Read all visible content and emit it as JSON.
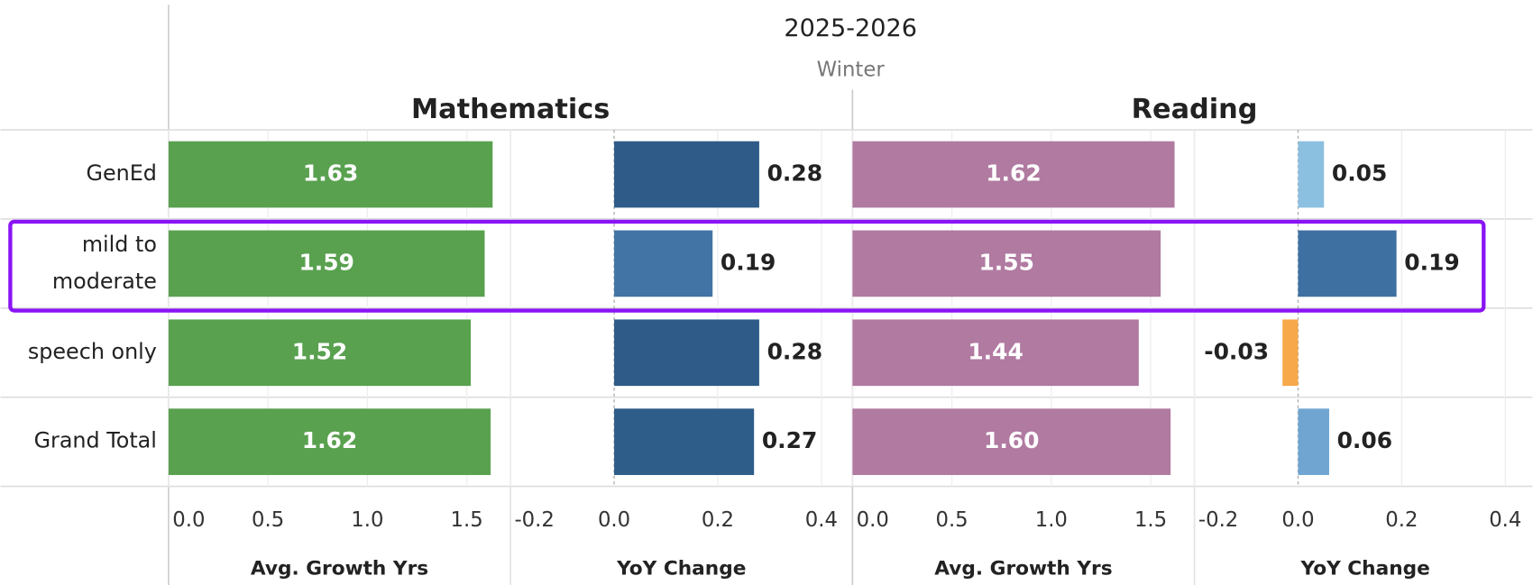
{
  "header": {
    "year": "2025-2026",
    "term": "Winter"
  },
  "chart_data": [
    {
      "type": "bar",
      "group": "Mathematics",
      "xlabel": "Avg. Growth Yrs",
      "categories": [
        "GenEd",
        "mild to moderate",
        "speech only",
        "Grand Total"
      ],
      "values": [
        1.63,
        1.59,
        1.52,
        1.62
      ],
      "value_labels": [
        "1.63",
        "1.59",
        "1.52",
        "1.62"
      ],
      "color": "#59a14f",
      "label_inside": true,
      "xlim": [
        0,
        1.72
      ],
      "xticks": [
        {
          "value": 0,
          "label": "0.0"
        },
        0.5,
        {
          "value": 1,
          "label": "1.0"
        },
        1.5
      ]
    },
    {
      "type": "bar",
      "xlabel": "YoY Change",
      "values": [
        0.28,
        0.19,
        0.28,
        0.27
      ],
      "value_labels": [
        "0.28",
        "0.19",
        "0.28",
        "0.27"
      ],
      "colors": [
        "#2e5b88",
        "#4274a6",
        "#2e5b88",
        "#2f5d8a"
      ],
      "label_inside": false,
      "xlim": [
        -0.2,
        0.46
      ],
      "xticks": [
        -0.2,
        {
          "value": 0,
          "label": "0.0"
        },
        0.2,
        0.4
      ]
    },
    {
      "type": "bar",
      "group": "Reading",
      "xlabel": "Avg. Growth Yrs",
      "values": [
        1.62,
        1.55,
        1.44,
        1.6
      ],
      "value_labels": [
        "1.62",
        "1.55",
        "1.44",
        "1.60"
      ],
      "color": "#b07aa1",
      "label_inside": true,
      "xlim": [
        0,
        1.72
      ],
      "xticks": [
        {
          "value": 0,
          "label": "0.0"
        },
        0.5,
        {
          "value": 1,
          "label": "1.0"
        },
        1.5
      ]
    },
    {
      "type": "bar",
      "xlabel": "YoY Change",
      "values": [
        0.05,
        0.19,
        -0.03,
        0.06
      ],
      "value_labels": [
        "0.05",
        "0.19",
        "-0.03",
        "0.06"
      ],
      "colors": [
        "#8cc0e0",
        "#3f70a2",
        "#f6a84a",
        "#6fa5d0"
      ],
      "label_inside": false,
      "xlim": [
        -0.2,
        0.46
      ],
      "xticks": [
        -0.2,
        {
          "value": 0,
          "label": "0.0"
        },
        0.2,
        0.4
      ]
    }
  ]
}
